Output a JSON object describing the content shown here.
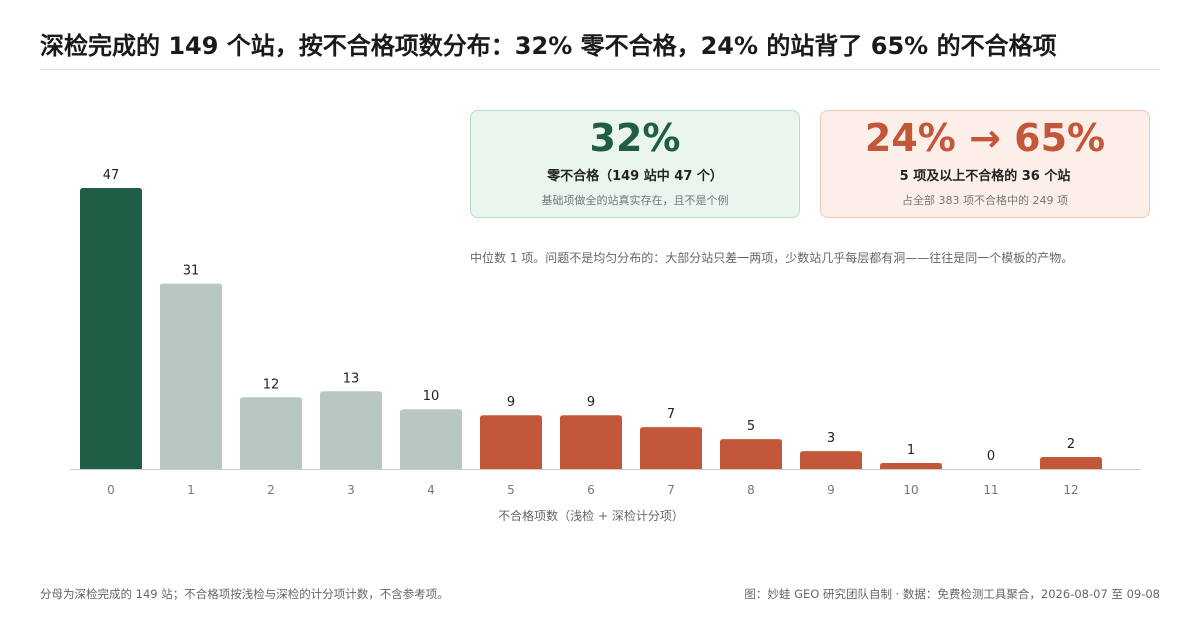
{
  "title": "深检完成的 149 个站，按不合格项数分布：32% 零不合格，24% 的站背了 65% 的不合格项",
  "cards": {
    "green": {
      "big": "32%",
      "sub": "零不合格（149 站中 47 个）",
      "note": "基础项做全的站真实存在，且不是个例"
    },
    "red": {
      "big": "24% → 65%",
      "sub": "5 项及以上不合格的 36 个站",
      "note": "占全部 383 项不合格中的 249 项"
    }
  },
  "annotation": "中位数 1 项。问题不是均匀分布的：大部分站只差一两项，少数站几乎每层都有洞——往往是同一个模板的产物。",
  "footer": {
    "left": "分母为深检完成的 149 站；不合格项按浅检与深检的计分项计数，不含参考项。",
    "right": "图：妙蛙 GEO 研究团队自制 · 数据：免费检测工具聚合，2026-08-07 至 09-08"
  },
  "colors": {
    "zero": "#1f5e45",
    "low": "#b8c7c0",
    "high": "#c2573a",
    "axis": "#cccccc"
  },
  "chart_data": {
    "type": "bar",
    "categories": [
      "0",
      "1",
      "2",
      "3",
      "4",
      "5",
      "6",
      "7",
      "8",
      "9",
      "10",
      "11",
      "12"
    ],
    "values": [
      47,
      31,
      12,
      13,
      10,
      9,
      9,
      7,
      5,
      3,
      1,
      0,
      2
    ],
    "color_groups": [
      "zero",
      "low",
      "low",
      "low",
      "low",
      "high",
      "high",
      "high",
      "high",
      "high",
      "high",
      "high",
      "high"
    ],
    "xlabel": "不合格项数（浅检 + 深检计分项）",
    "ylabel": "",
    "ylim": [
      0,
      47
    ],
    "grid": false,
    "data_labels": true
  }
}
